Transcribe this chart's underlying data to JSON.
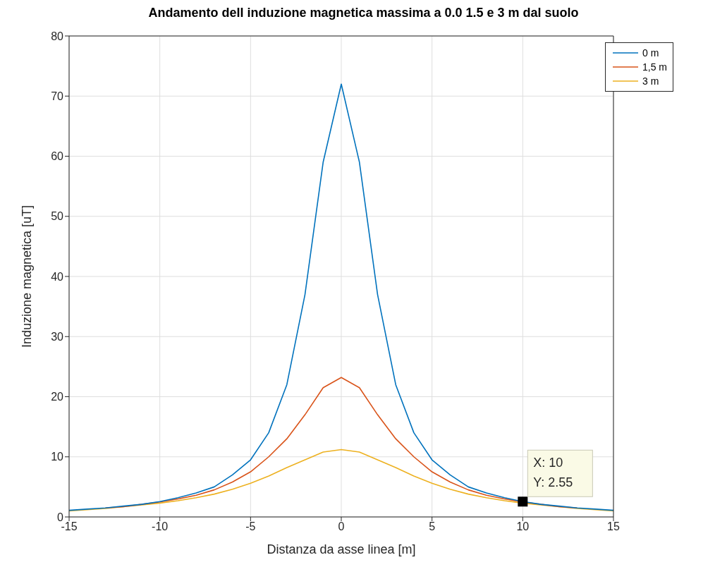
{
  "chart_data": {
    "type": "line",
    "title": "Andamento dell induzione magnetica massima a 0.0 1.5 e 3 m dal suolo",
    "xlabel": "Distanza da asse linea [m]",
    "ylabel": "Induzione magnetica [uT]",
    "x": [
      -15,
      -14,
      -13,
      -12,
      -11,
      -10,
      -9,
      -8,
      -7,
      -6,
      -5,
      -4,
      -3,
      -2,
      -1,
      0,
      1,
      2,
      3,
      4,
      5,
      6,
      7,
      8,
      9,
      10,
      11,
      12,
      13,
      14,
      15
    ],
    "series": [
      {
        "name": "0 m",
        "color": "#0072bd",
        "values": [
          1.1,
          1.3,
          1.5,
          1.8,
          2.1,
          2.55,
          3.2,
          4,
          5,
          7,
          9.5,
          14,
          22,
          37,
          59,
          72,
          59,
          37,
          22,
          14,
          9.5,
          7,
          5,
          4,
          3.2,
          2.55,
          2.1,
          1.8,
          1.5,
          1.3,
          1.1
        ]
      },
      {
        "name": "1,5 m",
        "color": "#d95319",
        "values": [
          null,
          null,
          1.5,
          1.7,
          2.1,
          2.5,
          3,
          3.6,
          4.5,
          5.8,
          7.5,
          10,
          13,
          17,
          21.5,
          23.2,
          21.5,
          17,
          13,
          10,
          7.5,
          5.8,
          4.5,
          3.6,
          3,
          2.5,
          2.1,
          1.7,
          1.5,
          null,
          null
        ]
      },
      {
        "name": "3 m",
        "color": "#edb120",
        "values": [
          1,
          1.2,
          1.4,
          1.7,
          2,
          2.3,
          2.7,
          3.2,
          3.8,
          4.6,
          5.6,
          6.8,
          8.2,
          9.5,
          10.8,
          11.2,
          10.8,
          9.5,
          8.2,
          6.8,
          5.6,
          4.6,
          3.8,
          3.2,
          2.7,
          2.3,
          2,
          1.7,
          1.4,
          1.2,
          1
        ]
      }
    ],
    "annotations": [
      {
        "text": "X: 10\nY: 2.55",
        "x": 10,
        "y": 2.55
      }
    ],
    "xlim": [
      -15,
      15
    ],
    "xticks": [
      -15,
      -10,
      -5,
      0,
      5,
      10,
      15
    ],
    "ylim": [
      0,
      80
    ],
    "yticks": [
      0,
      10,
      20,
      30,
      40,
      50,
      60,
      70,
      80
    ],
    "grid": true,
    "legend": "top right",
    "marker": "none",
    "line_style": "solid"
  }
}
